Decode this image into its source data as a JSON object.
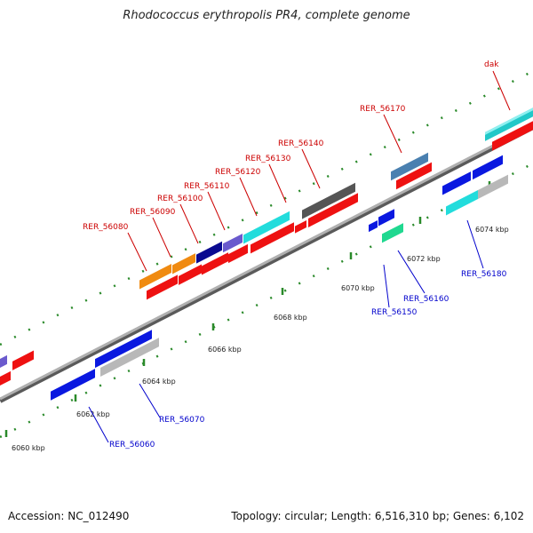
{
  "title": "Rhodococcus erythropolis PR4, complete genome",
  "footer": {
    "accession": "Accession: NC_012490",
    "topology": "Topology: circular; Length: 6,516,310 bp; Genes: 6,102"
  },
  "colors": {
    "label_top": "#cc0000",
    "label_bottom": "#0000cc",
    "genome_line": "#8a8a8a",
    "ticks": "#2a8a2a"
  },
  "axis_labels": [
    "6060 kbp",
    "6062 kbp",
    "6064 kbp",
    "6066 kbp",
    "6068 kbp",
    "6070 kbp",
    "6072 kbp",
    "6074 kbp"
  ],
  "gene_labels_top": [
    "dak",
    "RER_56170",
    "RER_56140",
    "RER_56130",
    "RER_56120",
    "RER_56110",
    "RER_56100",
    "RER_56090",
    "RER_56080"
  ],
  "gene_labels_bottom": [
    "RER_56060",
    "RER_56070",
    "RER_56150",
    "RER_56160",
    "RER_56180"
  ]
}
